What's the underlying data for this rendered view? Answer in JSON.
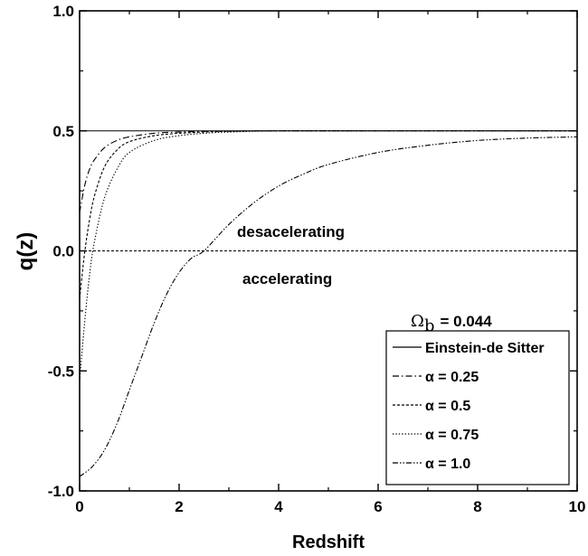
{
  "chart_data": {
    "type": "line",
    "xlabel": "Redshift",
    "ylabel": "q(z)",
    "xlim": [
      0,
      10
    ],
    "ylim": [
      -1.0,
      1.0
    ],
    "xticks": [
      0,
      2,
      4,
      6,
      8,
      10
    ],
    "xtick_labels": [
      "0",
      "2",
      "4",
      "6",
      "8",
      "10"
    ],
    "yticks": [
      -1.0,
      -0.5,
      0.0,
      0.5,
      1.0
    ],
    "ytick_labels": [
      "-1.0",
      "-0.5",
      "0.0",
      "0.5",
      "1.0"
    ],
    "grid": false,
    "legend_position": "lower-right",
    "annotations": {
      "upper": "desacelerating",
      "lower": "accelerating",
      "omega_symbol": "Ω",
      "omega_subscript": "b",
      "omega_value": "= 0.044"
    },
    "series": [
      {
        "name": "Einstein-de Sitter",
        "dash": "solid",
        "x": [
          0,
          10
        ],
        "y": [
          0.5,
          0.5
        ]
      },
      {
        "name": "α = 0.25",
        "dash": "dashdot",
        "x": [
          0,
          0.1,
          0.2,
          0.3,
          0.5,
          0.75,
          1.0,
          1.5,
          2.0,
          2.5,
          3.0,
          4.0,
          6.0,
          8.0,
          10.0
        ],
        "y": [
          0.16,
          0.27,
          0.34,
          0.38,
          0.43,
          0.46,
          0.475,
          0.49,
          0.495,
          0.498,
          0.499,
          0.5,
          0.5,
          0.5,
          0.5
        ]
      },
      {
        "name": "α = 0.5",
        "dash": "dashed",
        "x": [
          0,
          0.1,
          0.2,
          0.3,
          0.5,
          0.75,
          1.0,
          1.5,
          2.0,
          2.5,
          3.0,
          4.0,
          6.0,
          8.0,
          10.0
        ],
        "y": [
          -0.2,
          -0.01,
          0.13,
          0.23,
          0.35,
          0.42,
          0.455,
          0.48,
          0.49,
          0.495,
          0.498,
          0.5,
          0.5,
          0.5,
          0.5
        ]
      },
      {
        "name": "α = 0.75",
        "dash": "dotted",
        "x": [
          0,
          0.1,
          0.2,
          0.3,
          0.5,
          0.75,
          1.0,
          1.5,
          2.0,
          2.5,
          3.0,
          4.0,
          6.0,
          8.0,
          10.0
        ],
        "y": [
          -0.54,
          -0.3,
          -0.1,
          0.04,
          0.22,
          0.34,
          0.41,
          0.46,
          0.48,
          0.49,
          0.495,
          0.5,
          0.5,
          0.5,
          0.5
        ]
      },
      {
        "name": "α = 1.0",
        "dash": "dashdotdot",
        "x": [
          0,
          0.25,
          0.5,
          0.75,
          1.0,
          1.25,
          1.5,
          1.75,
          2.0,
          2.25,
          2.5,
          3.0,
          3.5,
          4.0,
          4.5,
          5.0,
          6.0,
          7.0,
          8.0,
          9.0,
          10.0
        ],
        "y": [
          -0.94,
          -0.9,
          -0.83,
          -0.72,
          -0.58,
          -0.44,
          -0.3,
          -0.18,
          -0.09,
          -0.03,
          0.0,
          0.11,
          0.2,
          0.27,
          0.32,
          0.36,
          0.41,
          0.44,
          0.46,
          0.47,
          0.475
        ]
      }
    ]
  }
}
